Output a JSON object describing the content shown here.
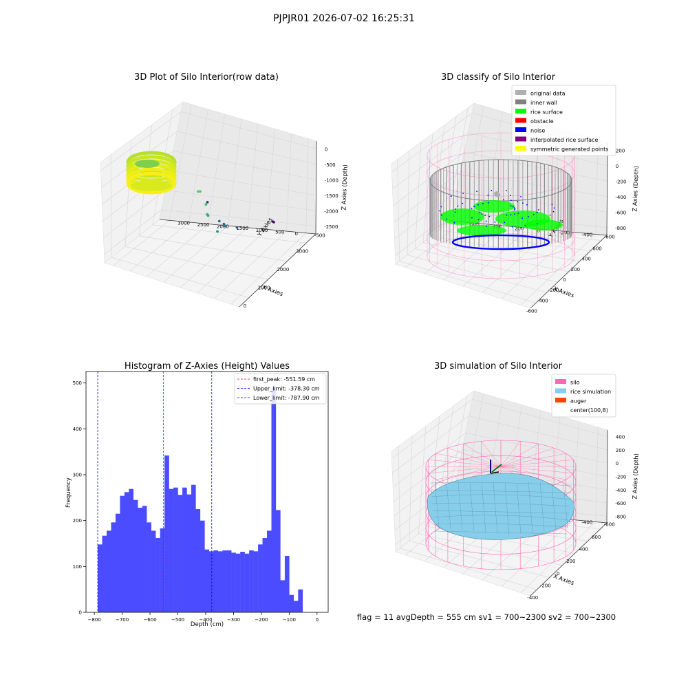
{
  "figure": {
    "suptitle": "PJPJR01 2026-07-02 16:25:31",
    "footer": "flag = 11   avgDepth = 555 cm  sv1 = 700~2300  sv2 = 700~2300"
  },
  "colors": {
    "original": "#b0b0b0",
    "inner_wall": "#808080",
    "rice": "#00ff00",
    "obstacle": "#ff0000",
    "noise": "#0000ff",
    "interp": "#800080",
    "symmetric": "#ffff00",
    "silo": "#ff69b4",
    "rice_sim": "#87ceeb",
    "auger": "#ff4500",
    "hist": "#4b4bff",
    "peak_line": "#ff0000",
    "limit_line": "#0000ff"
  },
  "chart_data": [
    {
      "type": "scatter",
      "title": "3D Plot of Silo Interior(row data)",
      "xlabel": "X Axies",
      "ylabel": "Y Axies",
      "zlabel": "Z Axies (Depth)",
      "xticks": [
        "0",
        "1000",
        "2000",
        "3000"
      ],
      "yticks": [
        "-500",
        "0",
        "500",
        "1000",
        "1500",
        "2000",
        "2500",
        "3000"
      ],
      "zticks": [
        "0",
        "-500",
        "-1000",
        "-1500",
        "-2000",
        "-2500"
      ],
      "outliers": [
        {
          "x": 1350,
          "y": 1500,
          "z": -1050
        },
        {
          "x": 1420,
          "y": 1480,
          "z": -1080
        },
        {
          "x": 1300,
          "y": 1250,
          "z": -1320
        },
        {
          "x": 1100,
          "y": 1100,
          "z": -1450
        },
        {
          "x": 1110,
          "y": 1080,
          "z": -1480
        },
        {
          "x": 900,
          "y": 700,
          "z": -1700
        },
        {
          "x": 1350,
          "y": 900,
          "z": -1720
        },
        {
          "x": 1400,
          "y": 800,
          "z": -1800
        },
        {
          "x": 1410,
          "y": 780,
          "z": -1850
        },
        {
          "x": 1700,
          "y": 600,
          "z": -2000
        },
        {
          "x": 2700,
          "y": 2000,
          "z": -2300
        },
        {
          "x": 3300,
          "y": 500,
          "z": -2700
        },
        {
          "x": 3320,
          "y": 480,
          "z": -2720
        }
      ]
    },
    {
      "type": "scatter",
      "title": "3D classify of Silo Interior",
      "xlabel": "X Axies",
      "ylabel": "Y Axies",
      "zlabel": "Z Axies (Depth)",
      "xticks": [
        "-600",
        "-400",
        "-200",
        "0",
        "200",
        "400",
        "600"
      ],
      "yticks": [
        "-600",
        "-400",
        "-200",
        "0",
        "200",
        "400",
        "600"
      ],
      "zticks": [
        "200",
        "0",
        "-200",
        "-400",
        "-600",
        "-800"
      ],
      "legend": [
        "original data",
        "inner wall",
        "rice surface",
        "obstacle",
        "noise",
        "interpolated rice surface",
        "symmetric generated points"
      ],
      "legend_loc": "top-right"
    },
    {
      "type": "bar",
      "title": "Histogram of Z-Axies (Height) Values",
      "xlabel": "Depth (cm)",
      "ylabel": "Frequency",
      "xlim": [
        -830,
        40
      ],
      "ylim": [
        0,
        525
      ],
      "xticks": [
        -800,
        -700,
        -600,
        -500,
        -400,
        -300,
        -200,
        -100,
        0
      ],
      "yticks": [
        0,
        100,
        200,
        300,
        400,
        500
      ],
      "bin_start": -787.9,
      "bin_width": 16.0,
      "values": [
        148,
        167,
        178,
        196,
        215,
        254,
        262,
        269,
        245,
        228,
        232,
        196,
        178,
        162,
        183,
        342,
        269,
        272,
        256,
        272,
        257,
        278,
        225,
        200,
        137,
        133,
        135,
        133,
        135,
        135,
        130,
        128,
        132,
        128,
        135,
        133,
        148,
        162,
        178,
        490,
        223,
        70,
        123,
        38,
        25,
        50
      ],
      "lines": [
        {
          "name": "first_peak: -551.59 cm",
          "x": -551.59,
          "style": "peak"
        },
        {
          "name": "Upper_limit: -378.30 cm",
          "x": -378.3,
          "style": "limit"
        },
        {
          "name": "Lower_limit: -787.90 cm",
          "x": -787.9,
          "style": "limit"
        }
      ],
      "legend_loc": "top-right"
    },
    {
      "type": "area",
      "title": "3D simulation of Silo Interior",
      "xlabel": "X Axies",
      "ylabel": "Y Axies",
      "zlabel": "Z Axies (Depth)",
      "xticks": [
        "-400",
        "-200",
        "0",
        "200",
        "400",
        "600"
      ],
      "yticks": [
        "-600",
        "-400",
        "-200",
        "0",
        "200",
        "400",
        "600"
      ],
      "zticks": [
        "400",
        "200",
        "0",
        "-200",
        "-400",
        "-600",
        "-800"
      ],
      "legend": [
        "silo",
        "rice simulation",
        "auger",
        "center(100,8)"
      ],
      "legend_loc": "top-right"
    }
  ]
}
